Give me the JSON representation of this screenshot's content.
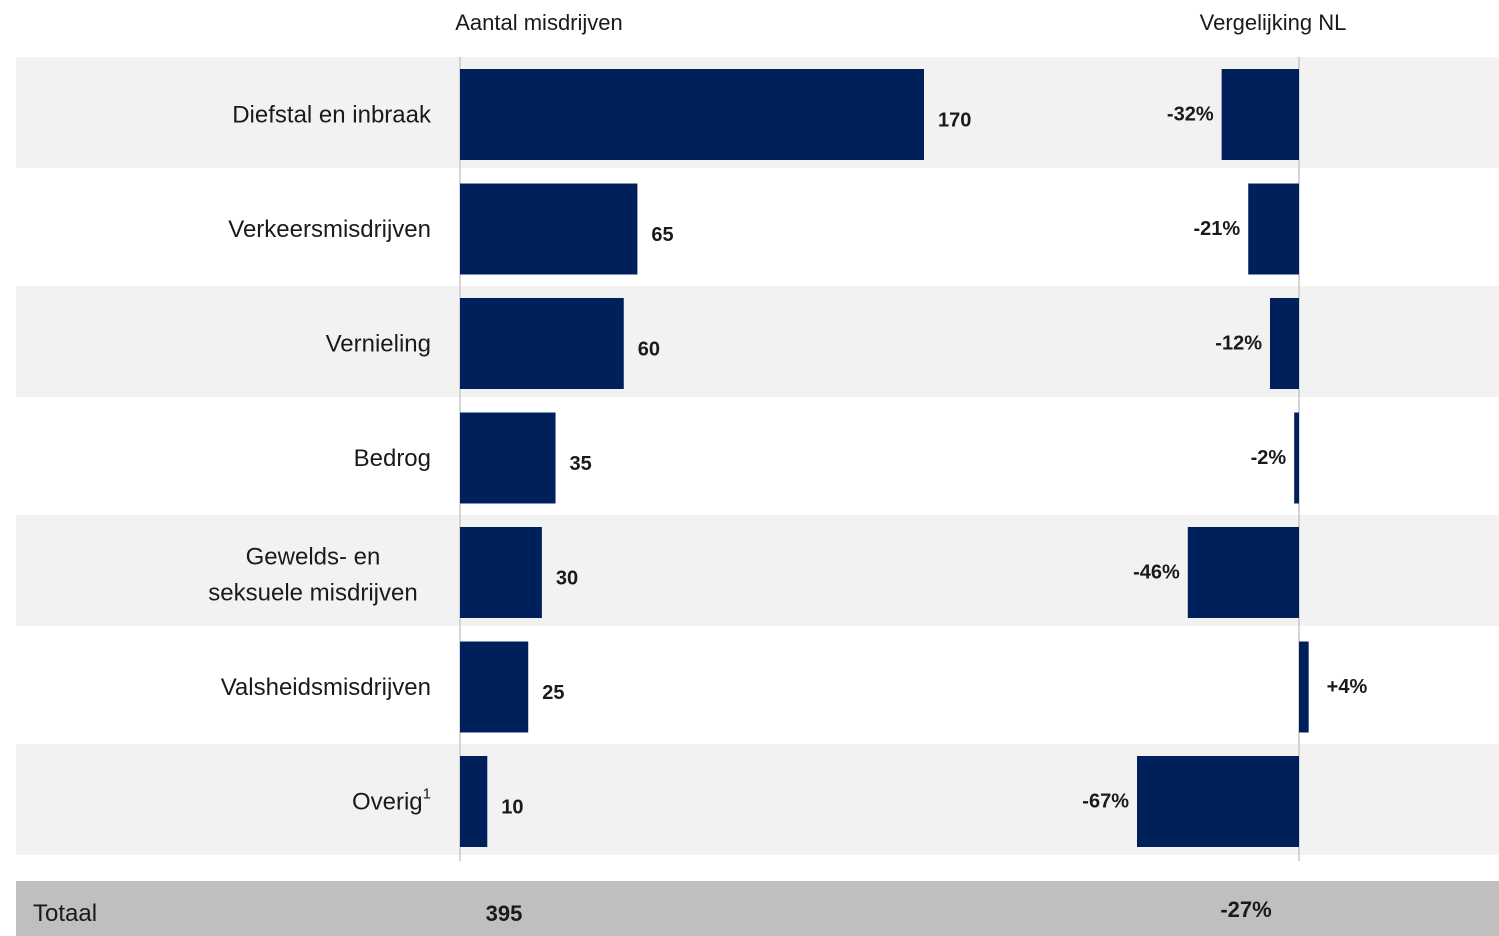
{
  "chart_data": {
    "type": "bar",
    "orientation": "horizontal",
    "headers": {
      "left": "Aantal misdrijven",
      "right": "Vergelijking NL"
    },
    "categories": [
      [
        "Diefstal en inbraak"
      ],
      [
        "Verkeersmisdrijven"
      ],
      [
        "Vernieling"
      ],
      [
        "Bedrog"
      ],
      [
        "Gewelds- en",
        "seksuele misdrijven"
      ],
      [
        "Valsheidsmisdrijven"
      ],
      [
        "Overig"
      ]
    ],
    "category_superscripts": [
      "",
      "",
      "",
      "",
      "",
      "",
      "1"
    ],
    "series": [
      {
        "values": [
          170,
          65,
          60,
          35,
          30,
          25,
          10
        ],
        "labels": [
          "170",
          "65",
          "60",
          "35",
          "30",
          "25",
          "10"
        ],
        "xlim": [
          0,
          200
        ]
      },
      {
        "values": [
          -32,
          -21,
          -12,
          -2,
          -46,
          4,
          -67
        ],
        "labels": [
          "-32%",
          "-21%",
          "-12%",
          "-2%",
          "-46%",
          "+4%",
          "-67%"
        ],
        "unit": "%"
      }
    ],
    "total": {
      "label": "Totaal",
      "count": "395",
      "comparison": "-27%"
    },
    "colors": {
      "bar": "#00205b",
      "band": "#f2f2f2",
      "total_band": "#bfbfbf",
      "axis": "#c8c8c8"
    }
  }
}
